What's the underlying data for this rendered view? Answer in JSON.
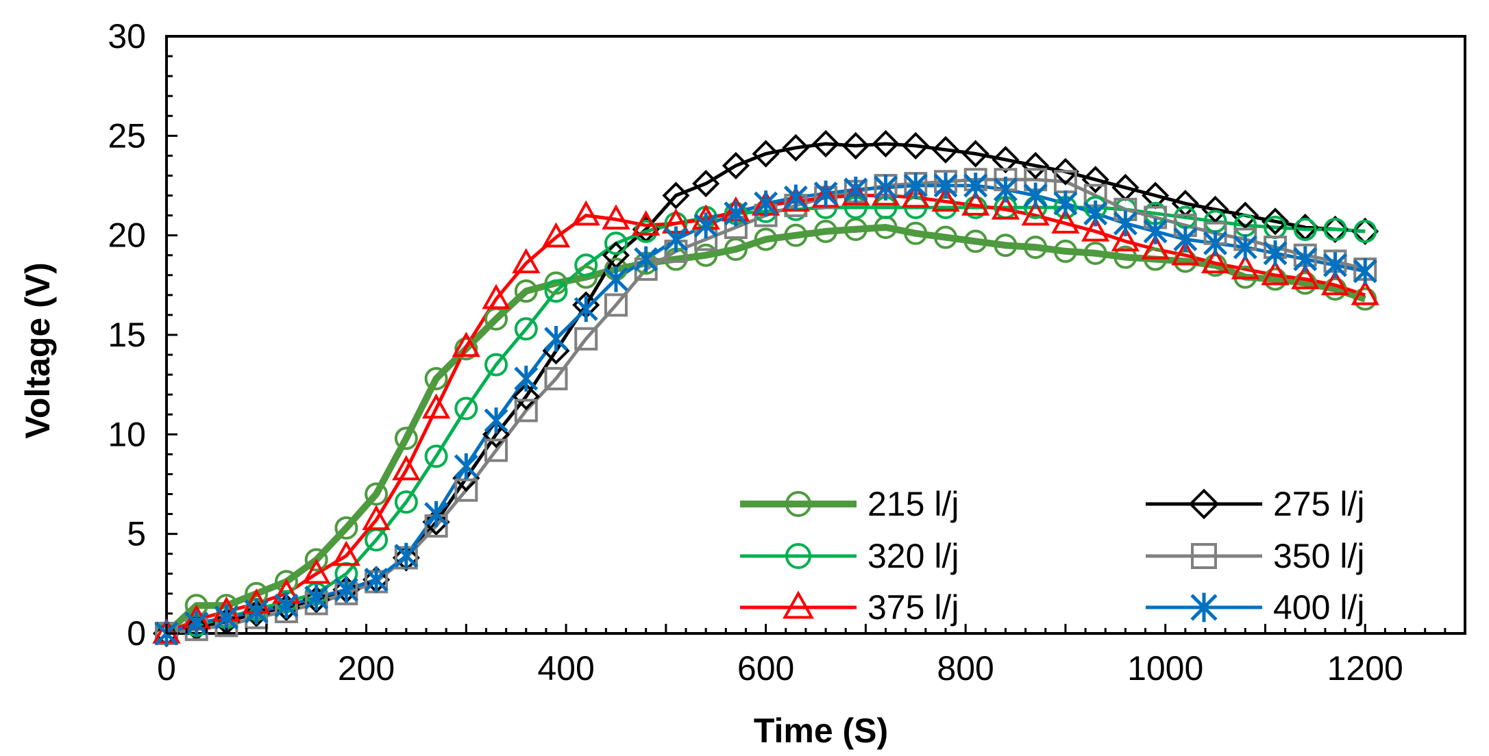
{
  "chart_data": {
    "type": "line",
    "title": "",
    "xlabel": "Time (S)",
    "ylabel": "Voltage (V)",
    "xlim": [
      0,
      1300
    ],
    "ylim": [
      0,
      30
    ],
    "xticks": [
      0,
      200,
      400,
      600,
      800,
      1000,
      1200
    ],
    "yticks": [
      0,
      5,
      10,
      15,
      20,
      25,
      30
    ],
    "x": [
      0,
      30,
      60,
      90,
      120,
      150,
      180,
      210,
      240,
      270,
      300,
      330,
      360,
      390,
      420,
      450,
      480,
      510,
      540,
      570,
      600,
      630,
      660,
      690,
      720,
      750,
      780,
      810,
      840,
      870,
      900,
      930,
      960,
      990,
      1020,
      1050,
      1080,
      1110,
      1140,
      1170,
      1200
    ],
    "legend_position": "bottom-right",
    "series": [
      {
        "name": "215 l/j",
        "color": "#4e9a3f",
        "marker": "circle",
        "line_width": "thick",
        "values": [
          0,
          1.4,
          1.4,
          2.0,
          2.6,
          3.7,
          5.3,
          7.0,
          9.8,
          12.8,
          14.3,
          15.8,
          17.2,
          17.6,
          17.9,
          18.3,
          18.6,
          18.8,
          19.0,
          19.3,
          19.8,
          20.0,
          20.2,
          20.3,
          20.4,
          20.1,
          19.9,
          19.7,
          19.5,
          19.4,
          19.2,
          19.1,
          18.9,
          18.8,
          18.7,
          18.5,
          17.9,
          17.8,
          17.6,
          17.3,
          16.8
        ]
      },
      {
        "name": "275 l/j",
        "color": "#000000",
        "marker": "diamond",
        "line_width": "normal",
        "values": [
          0,
          0.3,
          0.6,
          1.0,
          1.3,
          1.7,
          2.2,
          2.7,
          3.8,
          5.6,
          7.8,
          10.0,
          11.9,
          14.2,
          16.5,
          19.0,
          20.3,
          22.0,
          22.6,
          23.5,
          24.1,
          24.4,
          24.6,
          24.5,
          24.6,
          24.5,
          24.3,
          24.1,
          23.8,
          23.5,
          23.2,
          22.8,
          22.4,
          22.0,
          21.6,
          21.3,
          21.0,
          20.7,
          20.4,
          20.3,
          20.2
        ]
      },
      {
        "name": "320 l/j",
        "color": "#00b050",
        "marker": "circle",
        "line_width": "normal",
        "values": [
          0,
          0.4,
          0.8,
          1.2,
          1.6,
          2.0,
          3.0,
          4.7,
          6.6,
          8.9,
          11.3,
          13.5,
          15.3,
          17.2,
          18.5,
          19.6,
          20.2,
          20.6,
          20.9,
          21.1,
          21.2,
          21.3,
          21.4,
          21.4,
          21.4,
          21.4,
          21.4,
          21.4,
          21.4,
          21.4,
          21.4,
          21.4,
          21.3,
          21.1,
          20.9,
          20.7,
          20.5,
          20.4,
          20.3,
          20.3,
          20.2
        ]
      },
      {
        "name": "350 l/j",
        "color": "#808080",
        "marker": "square",
        "line_width": "normal",
        "values": [
          0,
          0.2,
          0.4,
          0.8,
          1.1,
          1.5,
          2.0,
          2.6,
          3.8,
          5.4,
          7.2,
          9.2,
          11.2,
          12.8,
          14.8,
          16.5,
          18.3,
          19.2,
          19.8,
          20.4,
          21.0,
          21.5,
          21.9,
          22.2,
          22.5,
          22.6,
          22.7,
          22.8,
          22.8,
          22.8,
          22.7,
          22.0,
          21.3,
          20.9,
          20.5,
          20.1,
          19.8,
          19.4,
          19.0,
          18.7,
          18.3
        ]
      },
      {
        "name": "375 l/j",
        "color": "#ff0000",
        "marker": "triangle",
        "line_width": "normal",
        "values": [
          0,
          0.7,
          1.1,
          1.5,
          2.0,
          3.0,
          3.9,
          5.7,
          8.2,
          11.3,
          14.4,
          16.8,
          18.6,
          19.9,
          21.0,
          20.8,
          20.5,
          20.6,
          20.8,
          21.2,
          21.5,
          21.7,
          21.9,
          22.0,
          22.0,
          21.9,
          21.7,
          21.5,
          21.3,
          21.0,
          20.6,
          20.2,
          19.7,
          19.3,
          19.0,
          18.6,
          18.3,
          18.0,
          17.8,
          17.5,
          17.0
        ]
      },
      {
        "name": "400 l/j",
        "color": "#0070c0",
        "marker": "asterisk",
        "line_width": "normal",
        "values": [
          0,
          0.5,
          0.8,
          1.1,
          1.4,
          1.8,
          2.2,
          2.7,
          3.9,
          6.0,
          8.4,
          10.7,
          12.8,
          14.8,
          16.3,
          17.8,
          18.8,
          19.8,
          20.5,
          21.1,
          21.6,
          21.9,
          22.1,
          22.3,
          22.4,
          22.5,
          22.5,
          22.5,
          22.3,
          22.0,
          21.6,
          21.1,
          20.6,
          20.2,
          19.8,
          19.6,
          19.4,
          19.1,
          18.8,
          18.5,
          18.2
        ]
      }
    ]
  }
}
